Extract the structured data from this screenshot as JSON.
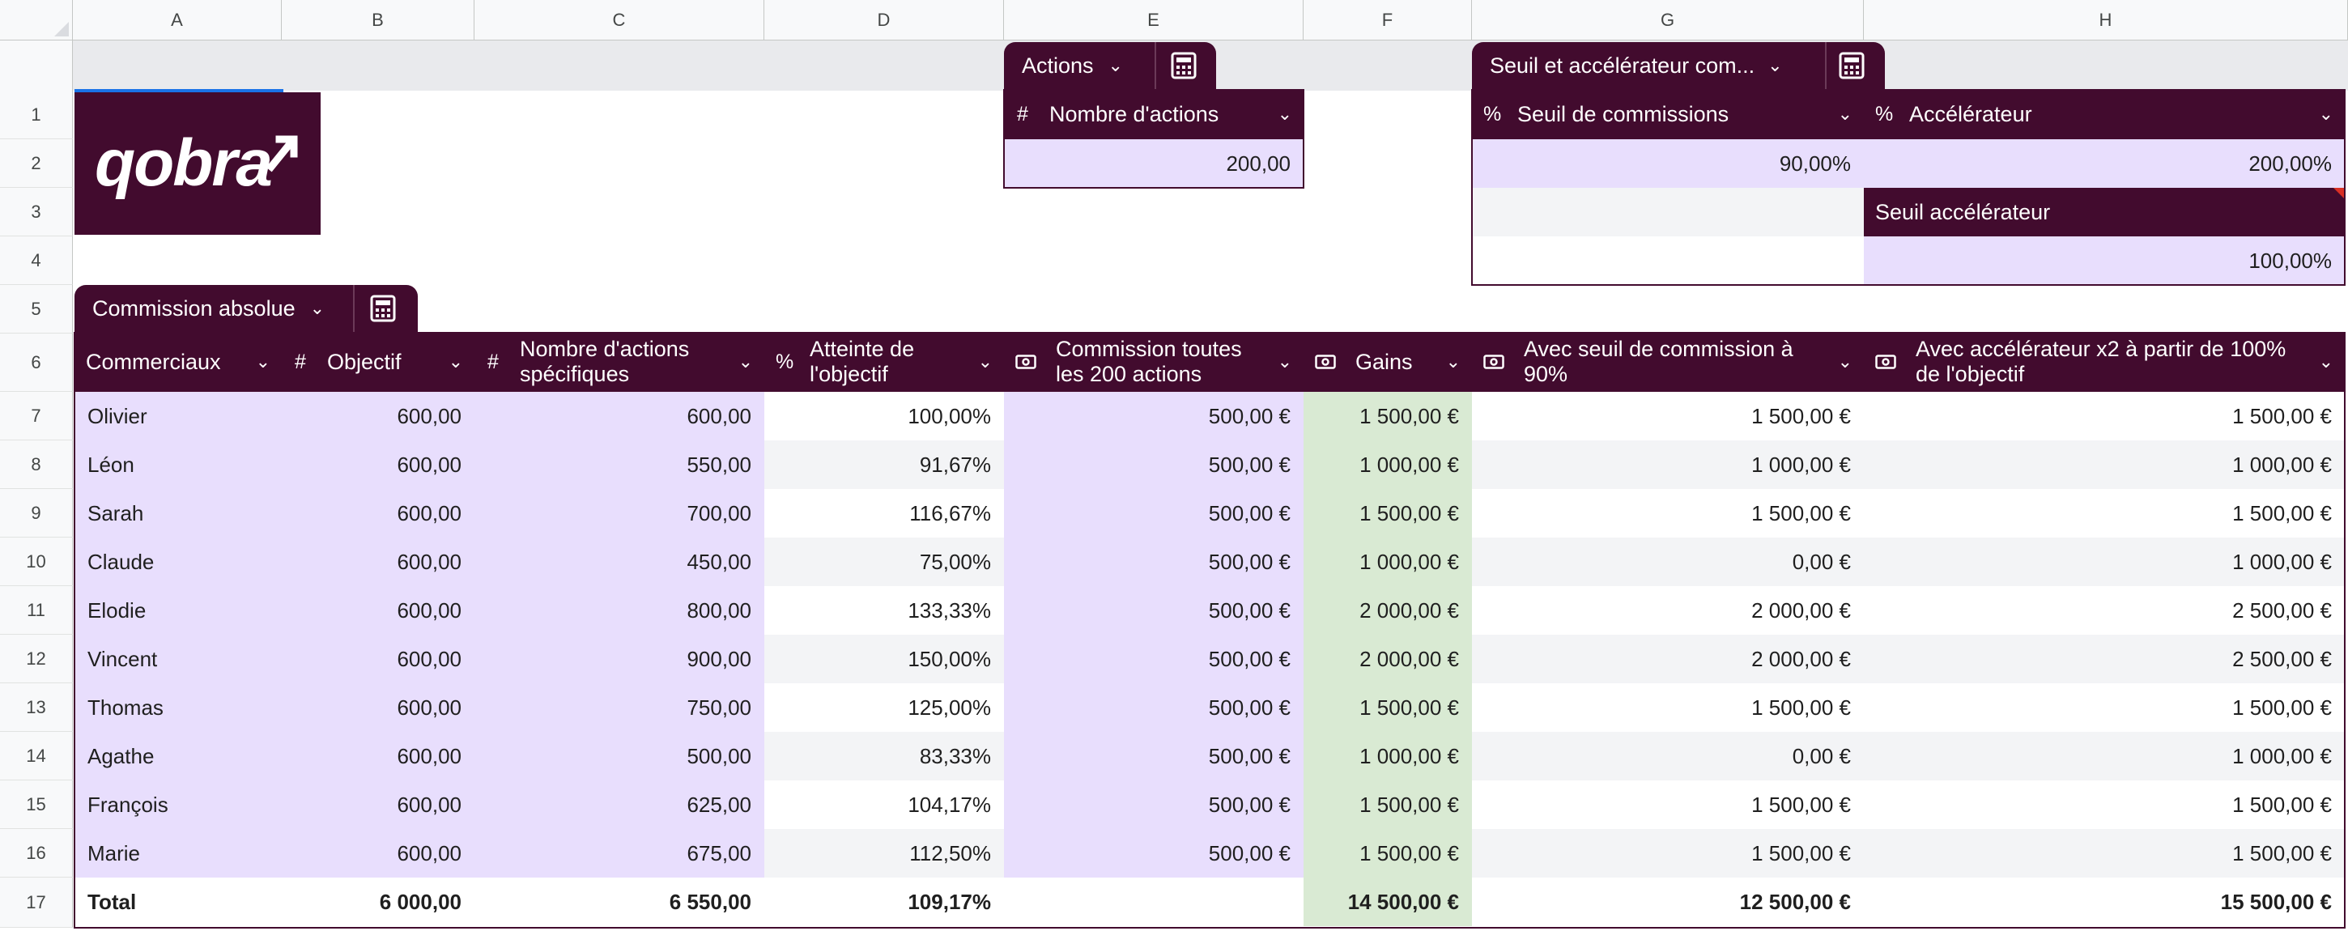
{
  "column_headers": [
    "A",
    "B",
    "C",
    "D",
    "E",
    "F",
    "G",
    "H"
  ],
  "row_numbers": [
    "1",
    "2",
    "3",
    "4",
    "5",
    "6",
    "7",
    "8",
    "9",
    "10",
    "11",
    "12",
    "13",
    "14",
    "15",
    "16",
    "17"
  ],
  "logo": {
    "text": "qobra"
  },
  "actions_table": {
    "chip_label": "Actions",
    "type_icon": "#",
    "header": "Nombre d'actions",
    "value": "200,00"
  },
  "threshold_table": {
    "chip_label": "Seuil et accélérateur com...",
    "col1_header": "Seuil de commissions",
    "col1_icon": "%",
    "col1_value": "90,00%",
    "col2_header": "Accélérateur",
    "col2_icon": "%",
    "col2_value": "200,00%",
    "sub_header": "Seuil accélérateur",
    "sub_value": "100,00%"
  },
  "commission_table": {
    "chip_label": "Commission absolue",
    "headers": [
      {
        "icon": "",
        "text": "Commerciaux"
      },
      {
        "icon": "#",
        "text": "Objectif"
      },
      {
        "icon": "#",
        "text": "Nombre d'actions spécifiques"
      },
      {
        "icon": "%",
        "text": "Atteinte de l'objectif"
      },
      {
        "icon": "money-icon",
        "text": "Commission toutes les 200 actions"
      },
      {
        "icon": "money-icon",
        "text": "Gains"
      },
      {
        "icon": "money-icon",
        "text": "Avec seuil de commission à 90%"
      },
      {
        "icon": "money-icon",
        "text": "Avec accélérateur x2 à partir de 100% de l'objectif"
      }
    ],
    "rows": [
      [
        "Olivier",
        "600,00",
        "600,00",
        "100,00%",
        "500,00 €",
        "1 500,00 €",
        "1 500,00 €",
        "1 500,00 €"
      ],
      [
        "Léon",
        "600,00",
        "550,00",
        "91,67%",
        "500,00 €",
        "1 000,00 €",
        "1 000,00 €",
        "1 000,00 €"
      ],
      [
        "Sarah",
        "600,00",
        "700,00",
        "116,67%",
        "500,00 €",
        "1 500,00 €",
        "1 500,00 €",
        "1 500,00 €"
      ],
      [
        "Claude",
        "600,00",
        "450,00",
        "75,00%",
        "500,00 €",
        "1 000,00 €",
        "0,00 €",
        "1 000,00 €"
      ],
      [
        "Elodie",
        "600,00",
        "800,00",
        "133,33%",
        "500,00 €",
        "2 000,00 €",
        "2 000,00 €",
        "2 500,00 €"
      ],
      [
        "Vincent",
        "600,00",
        "900,00",
        "150,00%",
        "500,00 €",
        "2 000,00 €",
        "2 000,00 €",
        "2 500,00 €"
      ],
      [
        "Thomas",
        "600,00",
        "750,00",
        "125,00%",
        "500,00 €",
        "1 500,00 €",
        "1 500,00 €",
        "1 500,00 €"
      ],
      [
        "Agathe",
        "600,00",
        "500,00",
        "83,33%",
        "500,00 €",
        "1 000,00 €",
        "0,00 €",
        "1 000,00 €"
      ],
      [
        "François",
        "600,00",
        "625,00",
        "104,17%",
        "500,00 €",
        "1 500,00 €",
        "1 500,00 €",
        "1 500,00 €"
      ],
      [
        "Marie",
        "600,00",
        "675,00",
        "112,50%",
        "500,00 €",
        "1 500,00 €",
        "1 500,00 €",
        "1 500,00 €"
      ]
    ],
    "total": [
      "Total",
      "6 000,00",
      "6 550,00",
      "109,17%",
      "",
      "14 500,00 €",
      "12 500,00 €",
      "15 500,00 €"
    ]
  },
  "colors": {
    "header_bg": "#420b2e",
    "input_cell": "#e8defd",
    "result_cell": "#d9ead3",
    "selection": "#1a73e8"
  }
}
